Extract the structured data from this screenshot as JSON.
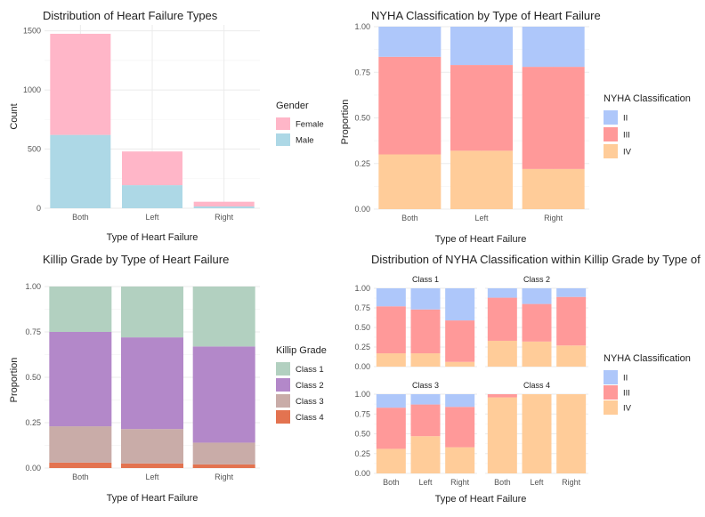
{
  "chart_data": [
    {
      "id": "p1",
      "type": "bar",
      "stacked": true,
      "title": "Distribution of Heart Failure Types",
      "xlabel": "Type of Heart Failure",
      "ylabel": "Count",
      "categories": [
        "Both",
        "Left",
        "Right"
      ],
      "series": [
        {
          "name": "Male",
          "values": [
            620,
            195,
            15
          ]
        },
        {
          "name": "Female",
          "values": [
            855,
            285,
            40
          ]
        }
      ],
      "ylim": [
        0,
        1550
      ],
      "yticks": [
        0,
        500,
        1000,
        1500
      ],
      "grid": true,
      "legend": {
        "title": "Gender",
        "entries": [
          "Female",
          "Male"
        ],
        "position": "right"
      }
    },
    {
      "id": "p2",
      "type": "bar",
      "stacked": true,
      "title": "NYHA Classification by Type of Heart Failure",
      "xlabel": "Type of Heart Failure",
      "ylabel": "Proportion",
      "categories": [
        "Both",
        "Left",
        "Right"
      ],
      "series": [
        {
          "name": "IV",
          "values": [
            0.3,
            0.32,
            0.22
          ]
        },
        {
          "name": "III",
          "values": [
            0.535,
            0.47,
            0.56
          ]
        },
        {
          "name": "II",
          "values": [
            0.165,
            0.21,
            0.22
          ]
        }
      ],
      "ylim": [
        0,
        1
      ],
      "yticks": [
        "0.00",
        "0.25",
        "0.50",
        "0.75",
        "1.00"
      ],
      "grid": true,
      "legend": {
        "title": "NYHA Classification",
        "entries": [
          "II",
          "III",
          "IV"
        ],
        "position": "right"
      }
    },
    {
      "id": "p3",
      "type": "bar",
      "stacked": true,
      "title": "Killip Grade by Type of Heart Failure",
      "xlabel": "Type of Heart Failure",
      "ylabel": "Proportion",
      "categories": [
        "Both",
        "Left",
        "Right"
      ],
      "series": [
        {
          "name": "Class 4",
          "values": [
            0.03,
            0.025,
            0.02
          ]
        },
        {
          "name": "Class 3",
          "values": [
            0.2,
            0.19,
            0.12
          ]
        },
        {
          "name": "Class 2",
          "values": [
            0.52,
            0.505,
            0.53
          ]
        },
        {
          "name": "Class 1",
          "values": [
            0.25,
            0.28,
            0.33
          ]
        }
      ],
      "ylim": [
        0,
        1
      ],
      "yticks": [
        "0.00",
        "0.25",
        "0.50",
        "0.75",
        "1.00"
      ],
      "grid": true,
      "legend": {
        "title": "Killip Grade",
        "entries": [
          "Class 1",
          "Class 2",
          "Class 3",
          "Class 4"
        ],
        "position": "right"
      }
    },
    {
      "id": "p4",
      "type": "bar",
      "stacked": true,
      "faceted": true,
      "title": "Distribution of NYHA Classification within Killip Grade by Type of",
      "xlabel": "Type of Heart Failure",
      "ylabel": "",
      "categories": [
        "Both",
        "Left",
        "Right"
      ],
      "yticks": [
        "0.00",
        "0.25",
        "0.50",
        "0.75",
        "1.00"
      ],
      "ylim": [
        0,
        1
      ],
      "grid": true,
      "facets": [
        {
          "label": "Class 1",
          "series": [
            {
              "name": "IV",
              "values": [
                0.17,
                0.17,
                0.06
              ]
            },
            {
              "name": "III",
              "values": [
                0.6,
                0.56,
                0.53
              ]
            },
            {
              "name": "II",
              "values": [
                0.23,
                0.27,
                0.41
              ]
            }
          ]
        },
        {
          "label": "Class 2",
          "series": [
            {
              "name": "IV",
              "values": [
                0.33,
                0.32,
                0.27
              ]
            },
            {
              "name": "III",
              "values": [
                0.55,
                0.48,
                0.62
              ]
            },
            {
              "name": "II",
              "values": [
                0.12,
                0.2,
                0.11
              ]
            }
          ]
        },
        {
          "label": "Class 3",
          "series": [
            {
              "name": "IV",
              "values": [
                0.31,
                0.47,
                0.33
              ]
            },
            {
              "name": "III",
              "values": [
                0.52,
                0.4,
                0.51
              ]
            },
            {
              "name": "II",
              "values": [
                0.17,
                0.13,
                0.16
              ]
            }
          ]
        },
        {
          "label": "Class 4",
          "series": [
            {
              "name": "IV",
              "values": [
                0.96,
                1.0,
                1.0
              ]
            },
            {
              "name": "III",
              "values": [
                0.04,
                0.0,
                0.0
              ]
            },
            {
              "name": "II",
              "values": [
                0.0,
                0.0,
                0.0
              ]
            }
          ]
        }
      ],
      "legend": {
        "title": "NYHA Classification",
        "entries": [
          "II",
          "III",
          "IV"
        ],
        "position": "right"
      }
    }
  ],
  "colors": {
    "Male": "#add8e6",
    "Female": "#ffb6c8",
    "II": "#aec7fa",
    "III": "#ff9999",
    "IV": "#ffcc99",
    "Class 1": "#b2d0c0",
    "Class 2": "#b388c9",
    "Class 3": "#c9aca8",
    "Class 4": "#e37350"
  }
}
